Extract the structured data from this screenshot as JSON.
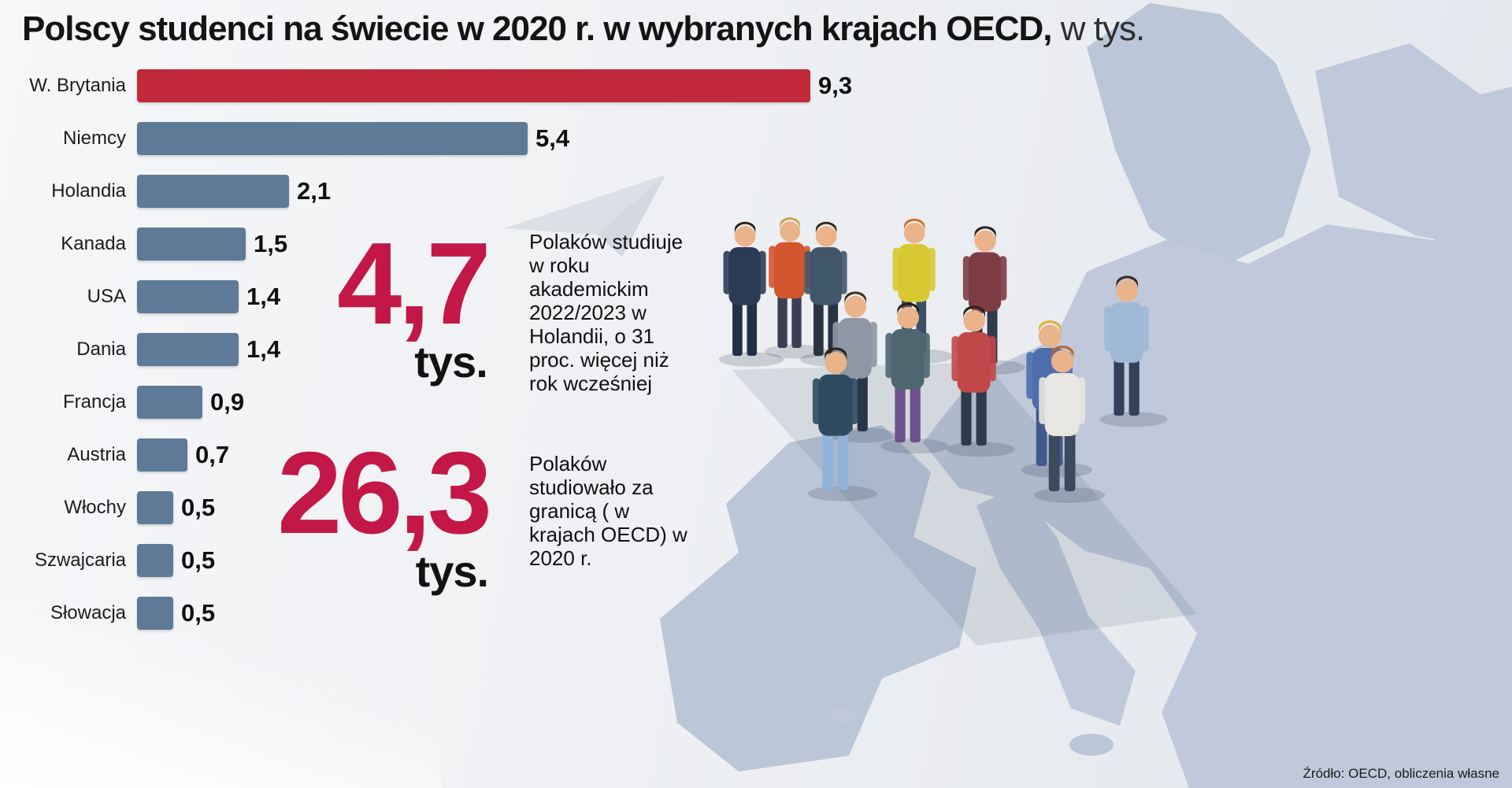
{
  "title": {
    "bold": "Polscy studenci na świecie w 2020 r. w wybranych  krajach OECD,",
    "light": " w tys."
  },
  "chart_data": {
    "type": "bar",
    "orientation": "horizontal",
    "title": "Polscy studenci na świecie w 2020 r. w wybranych krajach OECD, w tys.",
    "unit": "tys.",
    "categories": [
      "W. Brytania",
      "Niemcy",
      "Holandia",
      "Kanada",
      "USA",
      "Dania",
      "Francja",
      "Austria",
      "Włochy",
      "Szwajcaria",
      "Słowacja"
    ],
    "values": [
      9.3,
      5.4,
      2.1,
      1.5,
      1.4,
      1.4,
      0.9,
      0.7,
      0.5,
      0.5,
      0.5
    ],
    "value_labels": [
      "9,3",
      "5,4",
      "2,1",
      "1,5",
      "1,4",
      "1,4",
      "0,9",
      "0,7",
      "0,5",
      "0,5",
      "0,5"
    ],
    "xlim": [
      0,
      9.3
    ],
    "bar_colors": [
      "#c2293a",
      "#5e7a97",
      "#5e7a97",
      "#5e7a97",
      "#5e7a97",
      "#5e7a97",
      "#5e7a97",
      "#5e7a97",
      "#5e7a97",
      "#5e7a97",
      "#5e7a97"
    ],
    "grid": false,
    "legend": false
  },
  "callouts": [
    {
      "number": "4,7",
      "unit": "tys.",
      "text": "Polaków studiuje w roku akademickim 2022/2023 w Holandii, o 31 proc. więcej niż rok wcześniej"
    },
    {
      "number": "26,3",
      "unit": "tys.",
      "text": "Polaków studiowało za granicą ( w krajach OECD) w 2020 r."
    }
  ],
  "source": "Źródło: OECD, obliczenia własne",
  "colors": {
    "accent_red": "#c2293a",
    "bar_blue": "#5e7a97",
    "number_crimson": "#c31748",
    "map_blue": "#c0c9db"
  },
  "graphics": {
    "map": "europe-map",
    "people": "students-illustration",
    "plane": "paper-plane"
  }
}
